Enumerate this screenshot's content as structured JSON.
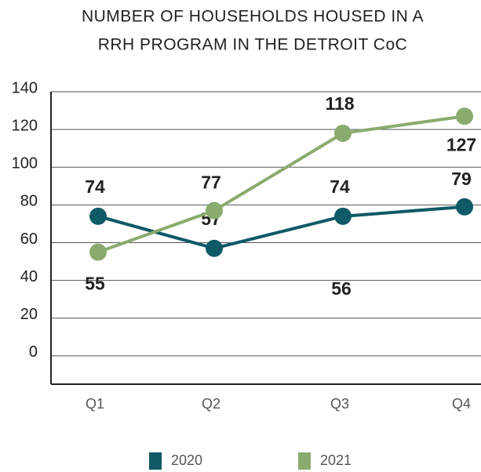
{
  "chart_data": {
    "type": "line",
    "title": [
      "NUMBER OF HOUSEHOLDS HOUSED IN A",
      "RRH PROGRAM IN THE DETROIT CoC"
    ],
    "categories": [
      "Q1",
      "Q2",
      "Q3",
      "Q4"
    ],
    "series": [
      {
        "name": "2020",
        "color": "#0e5a66",
        "values": [
          74,
          57,
          74,
          79
        ]
      },
      {
        "name": "2021",
        "color": "#8aab6e",
        "values": [
          55,
          77,
          118,
          127
        ]
      }
    ],
    "annotations": [
      "56"
    ],
    "ylim": [
      -15,
      140
    ],
    "yticks": [
      0,
      20,
      40,
      60,
      80,
      100,
      120,
      140
    ],
    "grid": true,
    "legend": "bottom"
  }
}
